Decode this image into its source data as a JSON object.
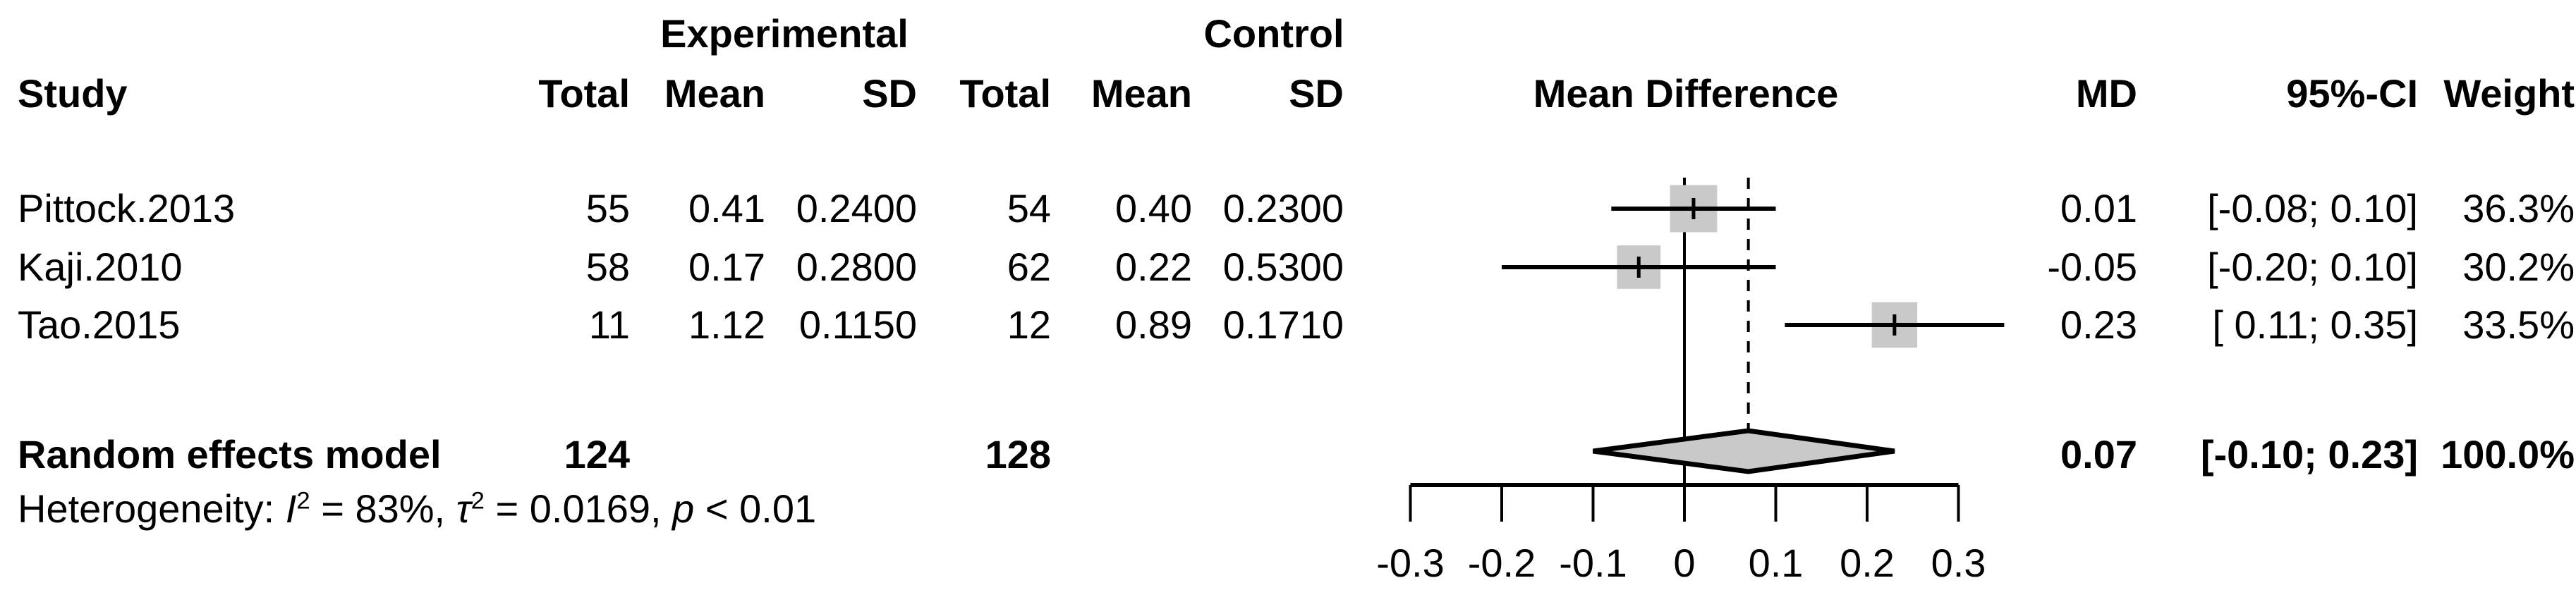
{
  "header": {
    "group_experimental": "Experimental",
    "group_control": "Control",
    "col_study": "Study",
    "col_total_exp": "Total",
    "col_mean_exp": "Mean",
    "col_sd_exp": "SD",
    "col_total_ctl": "Total",
    "col_mean_ctl": "Mean",
    "col_sd_ctl": "SD",
    "col_mean_difference": "Mean Difference",
    "col_md": "MD",
    "col_ci": "95%-CI",
    "col_weight": "Weight"
  },
  "rows": [
    {
      "study": "Pittock.2013",
      "exp_total": "55",
      "exp_mean": "0.41",
      "exp_sd": "0.2400",
      "ctl_total": "54",
      "ctl_mean": "0.40",
      "ctl_sd": "0.2300",
      "md": "0.01",
      "ci": "[-0.08; 0.10]",
      "weight": "36.3%"
    },
    {
      "study": "Kaji.2010",
      "exp_total": "58",
      "exp_mean": "0.17",
      "exp_sd": "0.2800",
      "ctl_total": "62",
      "ctl_mean": "0.22",
      "ctl_sd": "0.5300",
      "md": "-0.05",
      "ci": "[-0.20; 0.10]",
      "weight": "30.2%"
    },
    {
      "study": "Tao.2015",
      "exp_total": "11",
      "exp_mean": "1.12",
      "exp_sd": "0.1150",
      "ctl_total": "12",
      "ctl_mean": "0.89",
      "ctl_sd": "0.1710",
      "md": "0.23",
      "ci": "[ 0.11; 0.35]",
      "weight": "33.5%"
    }
  ],
  "summary": {
    "label": "Random effects model",
    "exp_total": "124",
    "ctl_total": "128",
    "md": "0.07",
    "ci": "[-0.10; 0.23]",
    "weight": "100.0%"
  },
  "heterogeneity": {
    "parts": [
      {
        "text": "Heterogeneity: "
      },
      {
        "text": "I",
        "italic": true
      },
      {
        "text": "2",
        "sup": true
      },
      {
        "text": " = 83%, "
      },
      {
        "text": "τ",
        "italic": true
      },
      {
        "text": "2",
        "sup": true
      },
      {
        "text": " = 0.0169, "
      },
      {
        "text": "p",
        "italic": true
      },
      {
        "text": " < 0.01"
      }
    ]
  },
  "chart_data": {
    "type": "forest",
    "title": "Mean Difference",
    "x_axis": {
      "ticks": [
        -0.3,
        -0.2,
        -0.1,
        0,
        0.1,
        0.2,
        0.3
      ],
      "tick_labels": [
        "-0.3",
        "-0.2",
        "-0.1",
        "0",
        "0.1",
        "0.2",
        "0.3"
      ],
      "range": [
        -0.3,
        0.3
      ]
    },
    "zero_line": 0,
    "pooled_dashed_line": 0.07,
    "studies": [
      {
        "name": "Pittock.2013",
        "md": 0.01,
        "ci_low": -0.08,
        "ci_high": 0.1,
        "weight_pct": 36.3
      },
      {
        "name": "Kaji.2010",
        "md": -0.05,
        "ci_low": -0.2,
        "ci_high": 0.1,
        "weight_pct": 30.2
      },
      {
        "name": "Tao.2015",
        "md": 0.23,
        "ci_low": 0.11,
        "ci_high": 0.35,
        "weight_pct": 33.5
      }
    ],
    "pooled": {
      "name": "Random effects model",
      "md": 0.07,
      "ci_low": -0.1,
      "ci_high": 0.23,
      "weight_pct": 100.0
    },
    "heterogeneity_stats": {
      "I2": "83%",
      "tau2": "0.0169",
      "p": "< 0.01"
    },
    "colors": {
      "square_fill": "#c9c9c9",
      "diamond_fill": "#c9c9c9",
      "line": "#000000"
    }
  }
}
